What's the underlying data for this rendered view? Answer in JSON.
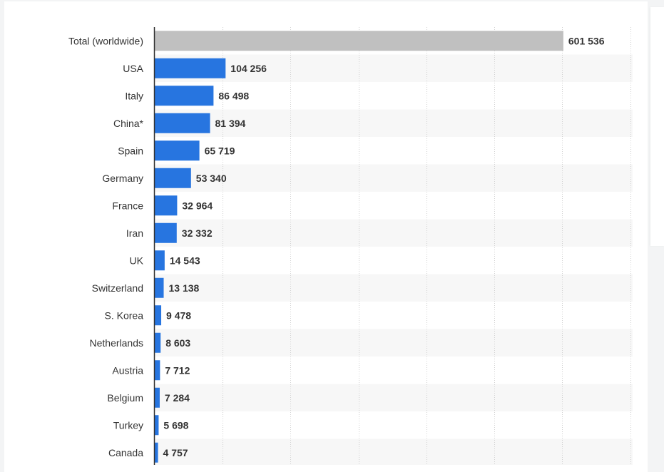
{
  "chart_data": {
    "type": "bar",
    "orientation": "horizontal",
    "categories": [
      "Total (worldwide)",
      "USA",
      "Italy",
      "China*",
      "Spain",
      "Germany",
      "France",
      "Iran",
      "UK",
      "Switzerland",
      "S. Korea",
      "Netherlands",
      "Austria",
      "Belgium",
      "Turkey",
      "Canada"
    ],
    "values": [
      601536,
      104256,
      86498,
      81394,
      65719,
      53340,
      32964,
      32332,
      14543,
      13138,
      9478,
      8603,
      7712,
      7284,
      5698,
      4757
    ],
    "value_labels": [
      "601 536",
      "104 256",
      "86 498",
      "81 394",
      "65 719",
      "53 340",
      "32 964",
      "32 332",
      "14 543",
      "13 138",
      "9 478",
      "8 603",
      "7 712",
      "7 284",
      "5 698",
      "4 757"
    ],
    "xlim": [
      0,
      700000
    ],
    "grid_step": 100000,
    "grid": true,
    "bar_colors": {
      "total": "#c0c0c0",
      "default": "#2775e0"
    },
    "stripe_color": "#f7f7f7",
    "axis_color": "#333333",
    "grid_color": "#d0d0d0"
  }
}
